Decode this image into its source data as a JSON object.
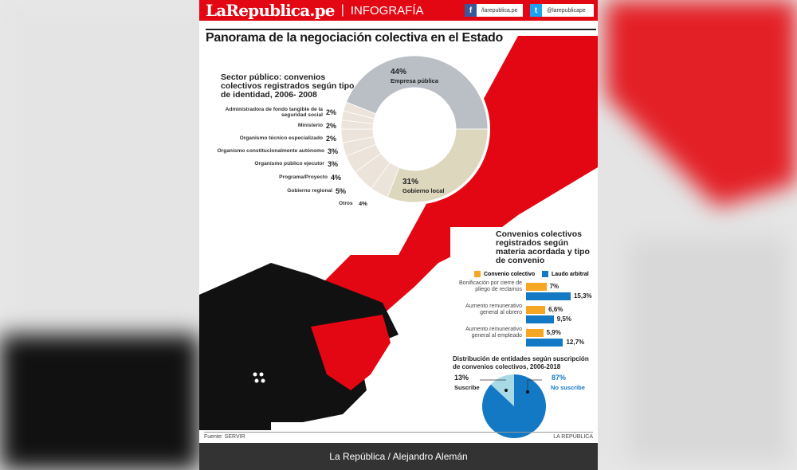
{
  "header": {
    "logo": "LaRepublica.pe",
    "section": "INFOGRAFÍA",
    "facebook": "/larepublica.pe",
    "twitter": "@larepublicape"
  },
  "title": "Panorama de la negociación colectiva en el Estado",
  "colors": {
    "brand_red": "#e30613",
    "empresa": "#b9bfc5",
    "local": "#dcd7bd",
    "small": "#ece4da",
    "convenio": "#f5a623",
    "laudo": "#1479c4",
    "suscribe": "#a7d9e7",
    "no_suscribe": "#1479c4"
  },
  "chart_data": [
    {
      "type": "pie",
      "title": "Sector público: convenios colectivos registrados según tipo de identidad, 2006- 2008",
      "slices": [
        {
          "label": "Empresa pública",
          "value": 44,
          "text": "44%"
        },
        {
          "label": "Gobierno local",
          "value": 31,
          "text": "31%"
        },
        {
          "label": "Otros",
          "value": 4,
          "text": "4%"
        },
        {
          "label": "Gobierno regional",
          "value": 5,
          "text": "5%"
        },
        {
          "label": "Programa/Proyecto",
          "value": 4,
          "text": "4%"
        },
        {
          "label": "Organismo público ejecutor",
          "value": 3,
          "text": "3%"
        },
        {
          "label": "Organismo constitucionalmente autónomo",
          "value": 3,
          "text": "3%"
        },
        {
          "label": "Organismo técnico especializado",
          "value": 2,
          "text": "2%"
        },
        {
          "label": "Ministerio",
          "value": 2,
          "text": "2%"
        },
        {
          "label": "Administradora de fondo tangible de la seguridad social",
          "value": 2,
          "text": "2%"
        }
      ]
    },
    {
      "type": "bar",
      "title": "Convenios colectivos registrados según materia acordada y tipo de convenio",
      "categories": [
        "Bonificación por cierre de pliego de reclamos",
        "Aumento remunerativo general al obrero",
        "Aumento remunerativo general al empleado"
      ],
      "series": [
        {
          "name": "Convenio colectivo",
          "values": [
            7,
            6.6,
            5.9
          ],
          "labels": [
            "7%",
            "6,6%",
            "5,9%"
          ]
        },
        {
          "name": "Laudo arbitral",
          "values": [
            15.3,
            9.5,
            12.7
          ],
          "labels": [
            "15,3%",
            "9,5%",
            "12,7%"
          ]
        }
      ]
    },
    {
      "type": "pie",
      "title": "Distribución de entidades según suscripción de convenios colectivos, 2006-2018",
      "slices": [
        {
          "label": "Suscribe",
          "value": 13,
          "text": "13%"
        },
        {
          "label": "No suscribe",
          "value": 87,
          "text": "87%"
        }
      ]
    }
  ],
  "footer": {
    "source": "Fuente: SERVIR",
    "brand": "LA REPÚBLICA",
    "credit": "La República / Alejandro Alemán"
  }
}
